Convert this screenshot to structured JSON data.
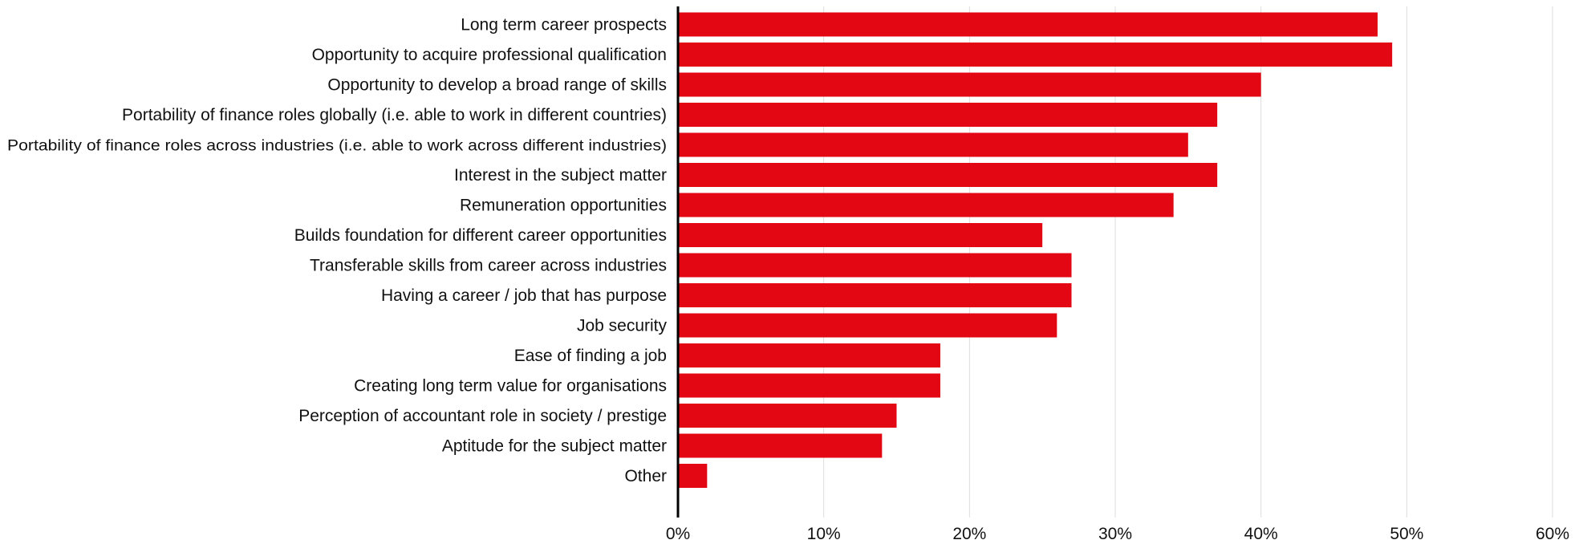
{
  "chart_data": {
    "type": "bar",
    "orientation": "horizontal",
    "categories": [
      "Long term career prospects",
      "Opportunity to acquire professional qualification",
      "Opportunity to develop a broad range of skills",
      "Portability of finance roles globally (i.e. able to work in different countries)",
      "Portability of finance roles across industries (i.e. able to work across different industries)",
      "Interest in the subject matter",
      "Remuneration opportunities",
      "Builds foundation for different career opportunities",
      "Transferable skills from career across industries",
      "Having a career / job that has purpose",
      "Job security",
      "Ease of finding a job",
      "Creating long term value for organisations",
      "Perception of accountant role in society / prestige",
      "Aptitude for the subject matter",
      "Other"
    ],
    "values": [
      48,
      49,
      40,
      37,
      35,
      37,
      34,
      25,
      27,
      27,
      26,
      18,
      18,
      15,
      14,
      2
    ],
    "unit": "%",
    "xlim": [
      0,
      60
    ],
    "xticks": [
      "0%",
      "10%",
      "20%",
      "30%",
      "40%",
      "50%",
      "60%"
    ],
    "title": "",
    "xlabel": "",
    "ylabel": "",
    "grid": "vertical",
    "legend": "none",
    "bar_color": "#e30613",
    "grid_color": "#dddddd",
    "axis_color": "#000000"
  }
}
